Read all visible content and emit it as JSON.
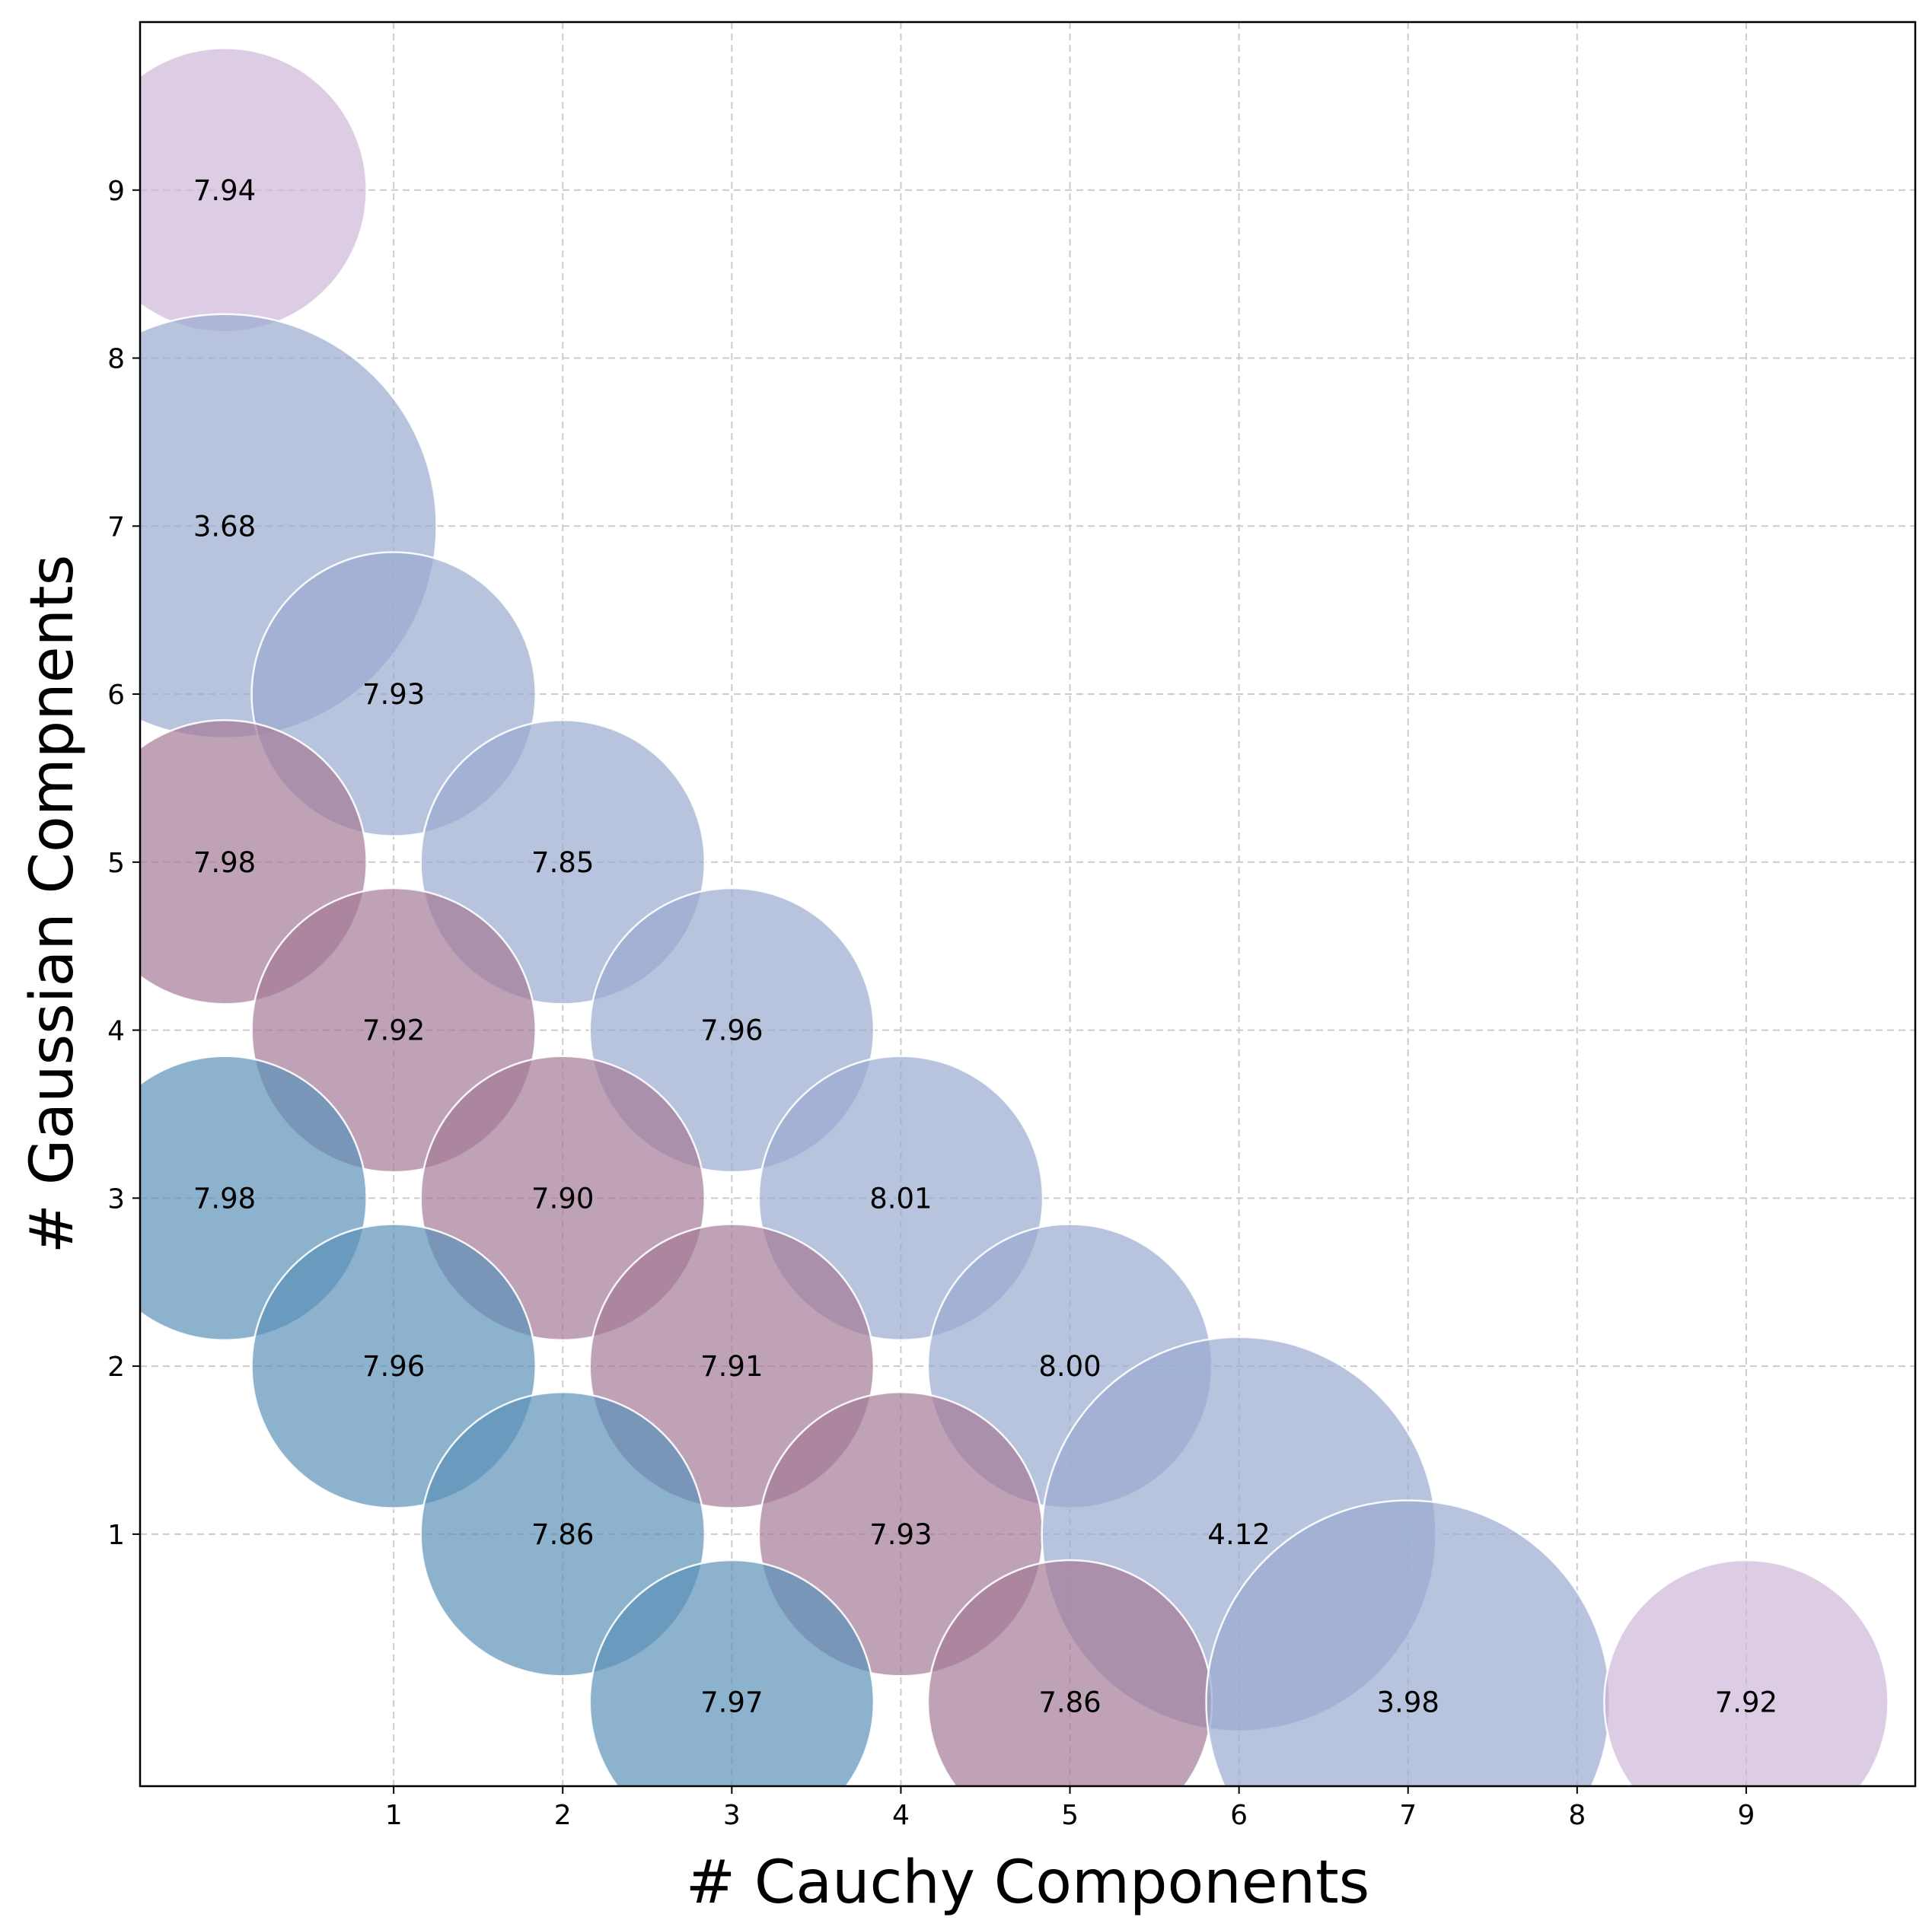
{
  "chart_data": {
    "type": "scatter",
    "title": "",
    "xlabel": "# Cauchy Components",
    "ylabel": "# Gaussian Compnents",
    "xlim": [
      -0.5,
      10.0
    ],
    "ylim": [
      -0.5,
      10.0
    ],
    "xticks": [
      1,
      2,
      3,
      4,
      5,
      6,
      7,
      8,
      9
    ],
    "yticks": [
      1,
      2,
      3,
      4,
      5,
      6,
      7,
      8,
      9
    ],
    "grid": true,
    "colors": {
      "blue": "#5b91b9",
      "mauve": "#a47a95",
      "periwinkle": "#9aabd0",
      "lilac": "#cdb7d9"
    },
    "points": [
      {
        "x": 0,
        "y": 9,
        "value": 7.94,
        "label": "7.94",
        "color": "lilac"
      },
      {
        "x": 0,
        "y": 7,
        "value": 3.68,
        "label": "3.68",
        "color": "periwinkle"
      },
      {
        "x": 1,
        "y": 6,
        "value": 7.93,
        "label": "7.93",
        "color": "periwinkle"
      },
      {
        "x": 0,
        "y": 5,
        "value": 7.98,
        "label": "7.98",
        "color": "mauve"
      },
      {
        "x": 2,
        "y": 5,
        "value": 7.85,
        "label": "7.85",
        "color": "periwinkle"
      },
      {
        "x": 1,
        "y": 4,
        "value": 7.92,
        "label": "7.92",
        "color": "mauve"
      },
      {
        "x": 3,
        "y": 4,
        "value": 7.96,
        "label": "7.96",
        "color": "periwinkle"
      },
      {
        "x": 0,
        "y": 3,
        "value": 7.98,
        "label": "7.98",
        "color": "blue"
      },
      {
        "x": 2,
        "y": 3,
        "value": 7.9,
        "label": "7.90",
        "color": "mauve"
      },
      {
        "x": 4,
        "y": 3,
        "value": 8.01,
        "label": "8.01",
        "color": "periwinkle"
      },
      {
        "x": 1,
        "y": 2,
        "value": 7.96,
        "label": "7.96",
        "color": "blue"
      },
      {
        "x": 3,
        "y": 2,
        "value": 7.91,
        "label": "7.91",
        "color": "mauve"
      },
      {
        "x": 5,
        "y": 2,
        "value": 8.0,
        "label": "8.00",
        "color": "periwinkle"
      },
      {
        "x": 2,
        "y": 1,
        "value": 7.86,
        "label": "7.86",
        "color": "blue"
      },
      {
        "x": 4,
        "y": 1,
        "value": 7.93,
        "label": "7.93",
        "color": "mauve"
      },
      {
        "x": 6,
        "y": 1,
        "value": 4.12,
        "label": "4.12",
        "color": "periwinkle"
      },
      {
        "x": 3,
        "y": 0,
        "value": 7.97,
        "label": "7.97",
        "color": "blue"
      },
      {
        "x": 5,
        "y": 0,
        "value": 7.86,
        "label": "7.86",
        "color": "mauve"
      },
      {
        "x": 7,
        "y": 0,
        "value": 3.98,
        "label": "3.98",
        "color": "periwinkle"
      },
      {
        "x": 9,
        "y": 0,
        "value": 7.92,
        "label": "7.92",
        "color": "lilac"
      }
    ]
  }
}
